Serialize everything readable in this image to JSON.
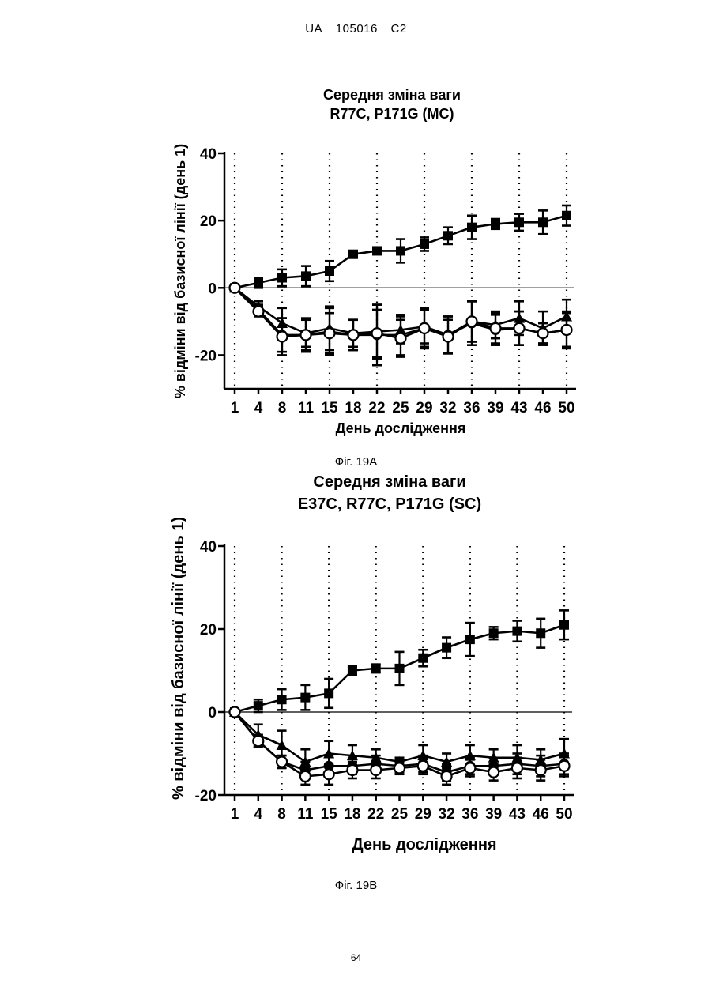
{
  "header": {
    "country": "UA",
    "number": "105016",
    "kind": "C2"
  },
  "page_number": "64",
  "figures": [
    {
      "caption": "Фіг. 19А"
    },
    {
      "caption": "Фіг. 19В"
    }
  ],
  "chart_data": [
    {
      "type": "line",
      "title_line1": "Середня зміна ваги",
      "title_line2": "R77C, P171G (MC)",
      "xlabel": "День дослідження",
      "ylabel": "% відміни від базисної лінії (день 1)",
      "categories": [
        "1",
        "4",
        "8",
        "11",
        "15",
        "18",
        "22",
        "25",
        "29",
        "32",
        "36",
        "39",
        "43",
        "46",
        "50"
      ],
      "ylim": [
        -30,
        40
      ],
      "yticks": [
        40,
        20,
        0,
        -20
      ],
      "vertical_dotted_lines_at": [
        "1",
        "8",
        "15",
        "22",
        "29",
        "36",
        "43",
        "50"
      ],
      "series": [
        {
          "marker": "square",
          "values": [
            0,
            1.5,
            3,
            3.5,
            5,
            10,
            11,
            11,
            13,
            15.5,
            18,
            19,
            19.5,
            19.5,
            21.5
          ],
          "errors": [
            0.5,
            1.5,
            2.5,
            3,
            3,
            1,
            1,
            3.5,
            2,
            2.5,
            3.5,
            1.5,
            2.5,
            3.5,
            3
          ]
        },
        {
          "marker": "triangle",
          "values": [
            0,
            -5.5,
            -10.5,
            -13.5,
            -12,
            -13.5,
            -13,
            -12.5,
            -11.5,
            -14,
            -10,
            -11,
            -9,
            -12,
            -8.5
          ],
          "errors": [
            0.5,
            1.5,
            4.5,
            4,
            6.5,
            4,
            8,
            4,
            5,
            5.5,
            6,
            4,
            5,
            5,
            5
          ]
        },
        {
          "marker": "filled-circle",
          "values": [
            0,
            -6.5,
            -14,
            -14,
            -13,
            -14,
            -14,
            -14,
            -12,
            -14,
            -10.5,
            -12.5,
            -12,
            -13.5,
            -12.5
          ],
          "errors": [
            0.5,
            1.5,
            5,
            5,
            7,
            4.5,
            9,
            6,
            6,
            5.5,
            6.5,
            4.5,
            5,
            3,
            5.5
          ]
        },
        {
          "marker": "open-circle",
          "values": [
            0,
            -7,
            -14.5,
            -14,
            -13.5,
            -14,
            -13.5,
            -15,
            -12,
            -14.5,
            -10,
            -12,
            -12,
            -13.5,
            -12.5
          ],
          "errors": [
            0.5,
            1.5,
            5.5,
            4.5,
            6,
            4.5,
            7,
            5.5,
            5.5,
            5,
            6,
            4.5,
            5,
            3,
            5
          ]
        }
      ]
    },
    {
      "type": "line",
      "title_line1": "Середня зміна ваги",
      "title_line2": "E37C, R77C, P171G (SC)",
      "xlabel": "День дослідження",
      "ylabel": "% відміни від базисної лінії (день 1)",
      "categories": [
        "1",
        "4",
        "8",
        "11",
        "15",
        "18",
        "22",
        "25",
        "29",
        "32",
        "36",
        "39",
        "43",
        "46",
        "50"
      ],
      "ylim": [
        -20,
        40
      ],
      "yticks": [
        40,
        20,
        0,
        -20
      ],
      "vertical_dotted_lines_at": [
        "1",
        "8",
        "15",
        "22",
        "29",
        "36",
        "43",
        "50"
      ],
      "series": [
        {
          "marker": "square",
          "values": [
            0,
            1.5,
            3,
            3.5,
            4.5,
            10,
            10.5,
            10.5,
            13,
            15.5,
            17.5,
            19,
            19.5,
            19,
            21
          ],
          "errors": [
            0.5,
            1.5,
            2.5,
            3,
            3.5,
            1,
            1,
            4,
            2,
            2.5,
            4,
            1.5,
            2.5,
            3.5,
            3.5
          ]
        },
        {
          "marker": "triangle",
          "values": [
            0,
            -5.5,
            -8,
            -12,
            -10,
            -10.5,
            -11,
            -12,
            -10.5,
            -12,
            -10.5,
            -11,
            -11,
            -11.5,
            -10
          ],
          "errors": [
            0.5,
            2.5,
            3.5,
            3,
            3,
            2.5,
            2,
            1,
            2.5,
            2,
            2.5,
            2,
            3,
            2.5,
            3.5
          ]
        },
        {
          "marker": "filled-circle",
          "values": [
            0,
            -7,
            -12,
            -14,
            -13,
            -13,
            -12.5,
            -13,
            -12.5,
            -14.5,
            -13,
            -13,
            -12.5,
            -13,
            -12.5
          ],
          "errors": [
            0.5,
            1.5,
            1.5,
            2,
            2.5,
            2,
            2,
            1.5,
            2,
            2,
            2,
            2,
            2.5,
            2.5,
            2.5
          ]
        },
        {
          "marker": "open-circle",
          "values": [
            0,
            -7,
            -12,
            -15.5,
            -15,
            -14,
            -14,
            -13.5,
            -13,
            -15.5,
            -13.5,
            -14.5,
            -13.5,
            -14,
            -13
          ],
          "errors": [
            0.5,
            1.5,
            1.5,
            2,
            2.5,
            2,
            2,
            1.5,
            2,
            2,
            2,
            2,
            2.5,
            2.5,
            2.5
          ]
        }
      ]
    }
  ]
}
